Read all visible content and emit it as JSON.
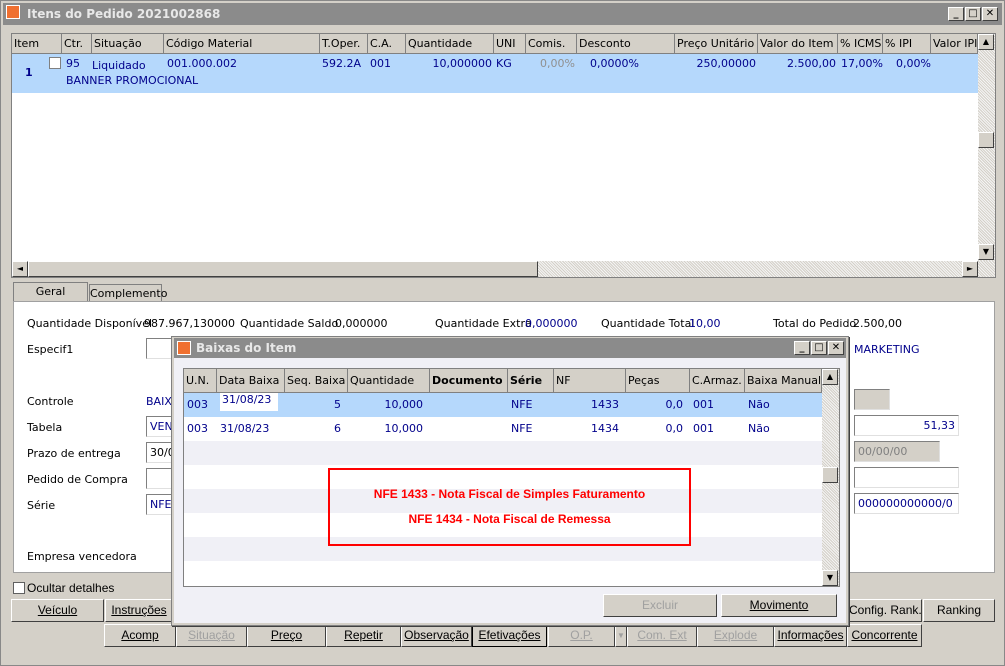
{
  "window": {
    "title": "Itens do Pedido 2021002868"
  },
  "items_grid": {
    "columns": [
      "Item",
      "Ctr.",
      "Situação",
      "Código Material",
      "T.Oper.",
      "C.A.",
      "Quantidade",
      "UNI",
      "Comis.",
      "Desconto",
      "Preço Unitário",
      "Valor do Item",
      "% ICMS",
      "% IPI",
      "Valor IPI"
    ],
    "rows": [
      {
        "item": "1",
        "ctr": "95",
        "situacao": "Liquidado",
        "codigo": "001.000.002",
        "descricao": "BANNER PROMOCIONAL",
        "toper": "592.2A",
        "ca": "001",
        "quantidade": "10,000000",
        "uni": "KG",
        "comis": "0,00%",
        "desconto": "0,0000%",
        "preco": "250,00000",
        "valor": "2.500,00",
        "icms": "17,00%",
        "ipi": "0,00%",
        "valor_ipi": ""
      }
    ]
  },
  "tabs": [
    "Geral",
    "Complemento"
  ],
  "details": {
    "qtd_disp_label": "Quantidade Disponível",
    "qtd_disp": "987.967,130000",
    "qtd_saldo_label": "Quantidade Saldo",
    "qtd_saldo": "0,000000",
    "qtd_extra_label": "Quantidade Extra",
    "qtd_extra": "0,000000",
    "qtd_total_label": "Quantidade Total",
    "qtd_total": "10,00",
    "total_label": "Total do Pedido",
    "total": "2.500,00",
    "especif_label": "Especif1",
    "especif_extra": "MARKETING",
    "controle_label": "Controle",
    "controle": "BAIXA",
    "tabela_label": "Tabela",
    "tabela": "VEND",
    "prazo_label": "Prazo de entrega",
    "prazo": "30/08",
    "pedido_label": "Pedido de Compra",
    "serie_label": "Série",
    "serie": "NFE",
    "empresa_label": "Empresa vencedora",
    "right_value": "51,33",
    "right_date": "00/00/00",
    "right_code": "000000000000/0",
    "ocultar_label": "Ocultar detalhes"
  },
  "dialog": {
    "title": "Baixas do Item",
    "columns": [
      "U.N.",
      "Data Baixa",
      "Seq. Baixa",
      "Quantidade",
      "Documento",
      "Série",
      "NF",
      "Peças",
      "C.Armaz.",
      "Baixa Manual"
    ],
    "rows": [
      [
        "003",
        "31/08/23",
        "5",
        "10,000",
        "",
        "NFE",
        "1433",
        "0,0",
        "001",
        "Não"
      ],
      [
        "003",
        "31/08/23",
        "6",
        "10,000",
        "",
        "NFE",
        "1434",
        "0,0",
        "001",
        "Não"
      ]
    ],
    "annotation": [
      "NFE 1433 - Nota Fiscal de Simples Faturamento",
      "NFE 1434 - Nota Fiscal de Remessa"
    ],
    "excluir": "Excluir",
    "movimento": "Movimento"
  },
  "buttons_row1": [
    "Veículo",
    "Instruções",
    "Config. Rank.",
    "Ranking"
  ],
  "buttons_row2": [
    {
      "label": "Acomp",
      "enabled": true
    },
    {
      "label": "Situação",
      "enabled": false
    },
    {
      "label": "Preço",
      "enabled": true
    },
    {
      "label": "Repetir",
      "enabled": true
    },
    {
      "label": "Observação",
      "enabled": true
    },
    {
      "label": "Efetivações",
      "enabled": true
    },
    {
      "label": "O.P.",
      "enabled": false
    },
    {
      "label": "Com. Ext",
      "enabled": false
    },
    {
      "label": "Explode",
      "enabled": false
    },
    {
      "label": "Informações",
      "enabled": true
    },
    {
      "label": "Concorrente",
      "enabled": true
    }
  ],
  "colors": {
    "selection": "#b5d8fc",
    "annotation": "#ff0000",
    "titlebar": "#8b8b8b"
  }
}
